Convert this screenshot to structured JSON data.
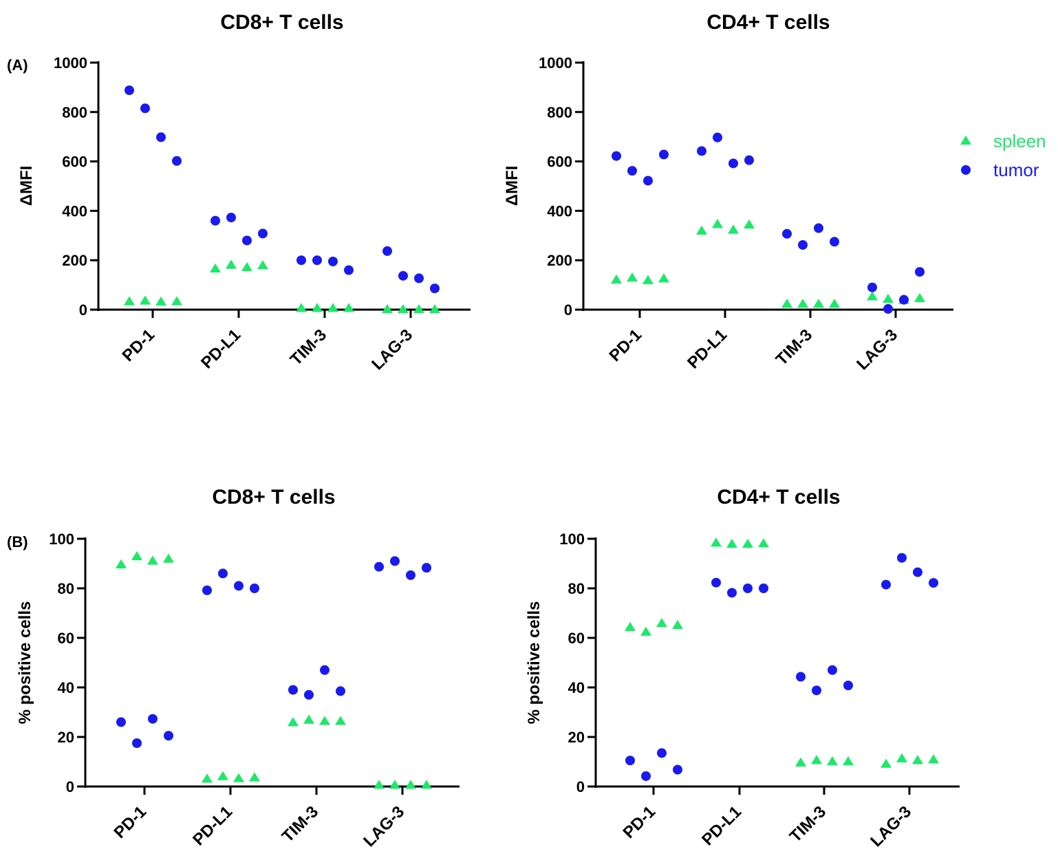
{
  "colors": {
    "spleen": "#1ee86a",
    "tumor": "#1a1aee",
    "axis": "#000000"
  },
  "legend": {
    "entries": [
      {
        "series": "spleen",
        "label": "spleen",
        "marker": "triangle"
      },
      {
        "series": "tumor",
        "label": "tumor",
        "marker": "circle"
      }
    ]
  },
  "chart_data": [
    {
      "type": "scatter",
      "panel_label": "(A)",
      "title": "CD8+ T cells",
      "ylabel": "ΔMFI",
      "xlabel": "",
      "ylim": [
        0,
        1000
      ],
      "yticks": [
        0,
        200,
        400,
        600,
        800,
        1000
      ],
      "categories": [
        "PD-1",
        "PD-L1",
        "TIM-3",
        "LAG-3"
      ],
      "series": [
        {
          "name": "spleen",
          "values": [
            [
              32,
              35,
              31,
              32
            ],
            [
              165,
              180,
              170,
              178
            ],
            [
              5,
              5,
              5,
              5
            ],
            [
              0,
              0,
              0,
              0
            ]
          ]
        },
        {
          "name": "tumor",
          "values": [
            [
              888,
              815,
              698,
              602
            ],
            [
              360,
              373,
              280,
              308
            ],
            [
              200,
              200,
              195,
              160
            ],
            [
              237,
              137,
              127,
              86
            ]
          ]
        }
      ]
    },
    {
      "type": "scatter",
      "panel_label": "",
      "title": "CD4+ T cells",
      "ylabel": "ΔMFI",
      "xlabel": "",
      "ylim": [
        0,
        1000
      ],
      "yticks": [
        0,
        200,
        400,
        600,
        800,
        1000
      ],
      "categories": [
        "PD-1",
        "PD-L1",
        "TIM-3",
        "LAG-3"
      ],
      "series": [
        {
          "name": "spleen",
          "values": [
            [
              120,
              128,
              118,
              125
            ],
            [
              318,
              345,
              322,
              343
            ],
            [
              22,
              22,
              22,
              22
            ],
            [
              52,
              42,
              38,
              45
            ]
          ]
        },
        {
          "name": "tumor",
          "values": [
            [
              622,
              562,
              522,
              628
            ],
            [
              642,
              697,
              592,
              605
            ],
            [
              307,
              262,
              330,
              275
            ],
            [
              90,
              3,
              40,
              153
            ]
          ]
        }
      ]
    },
    {
      "type": "scatter",
      "panel_label": "(B)",
      "title": "CD8+ T cells",
      "ylabel": "% positive cells",
      "xlabel": "",
      "ylim": [
        0,
        100
      ],
      "yticks": [
        0,
        20,
        40,
        60,
        80,
        100
      ],
      "categories": [
        "PD-1",
        "PD-L1",
        "TIM-3",
        "LAG-3"
      ],
      "series": [
        {
          "name": "spleen",
          "values": [
            [
              89.5,
              92.8,
              91,
              91.8
            ],
            [
              3,
              4,
              3.2,
              3.5
            ],
            [
              25.8,
              26.8,
              26.3,
              26.3
            ],
            [
              0.5,
              0.5,
              0.5,
              0.5
            ]
          ]
        },
        {
          "name": "tumor",
          "values": [
            [
              26,
              17.5,
              27.3,
              20.5
            ],
            [
              79.2,
              86.0,
              81.0,
              80.0
            ],
            [
              39.0,
              37.0,
              47.0,
              38.5
            ],
            [
              88.7,
              91.0,
              85.3,
              88.3
            ]
          ]
        }
      ]
    },
    {
      "type": "scatter",
      "panel_label": "",
      "title": "CD4+ T cells",
      "ylabel": "% positive cells",
      "xlabel": "",
      "ylim": [
        0,
        100
      ],
      "yticks": [
        0,
        20,
        40,
        60,
        80,
        100
      ],
      "categories": [
        "PD-1",
        "PD-L1",
        "TIM-3",
        "LAG-3"
      ],
      "series": [
        {
          "name": "spleen",
          "values": [
            [
              64.2,
              62.3,
              65.8,
              65.0
            ],
            [
              98.3,
              97.8,
              97.8,
              98.0
            ],
            [
              9.5,
              10.5,
              10.0,
              10.0
            ],
            [
              9.0,
              11.2,
              10.5,
              10.8
            ]
          ]
        },
        {
          "name": "tumor",
          "values": [
            [
              10.5,
              4.2,
              13.5,
              6.8
            ],
            [
              82.3,
              78.2,
              80.0,
              80.0
            ],
            [
              44.3,
              38.8,
              47.0,
              40.8
            ],
            [
              81.5,
              92.3,
              86.5,
              82.2
            ]
          ]
        }
      ]
    }
  ]
}
